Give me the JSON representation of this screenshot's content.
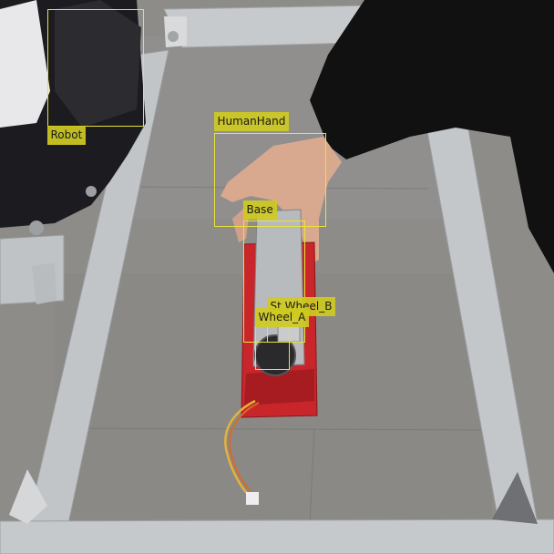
{
  "annotations": [
    {
      "id": "robot",
      "label": "Robot"
    },
    {
      "id": "humanhand",
      "label": "HumanHand"
    },
    {
      "id": "base",
      "label": "Base"
    },
    {
      "id": "st-wheel-b",
      "label": "St Wheel_B"
    },
    {
      "id": "wheel-a",
      "label": "Wheel_A"
    }
  ],
  "colors": {
    "box": "#e8e23a",
    "label_background": "#ceca22",
    "label_text": "#1b1b1b",
    "floor": "#8f8d8a",
    "rail": "#bfc3c6",
    "tray": "#c8262a",
    "sleeve": "#111111"
  }
}
